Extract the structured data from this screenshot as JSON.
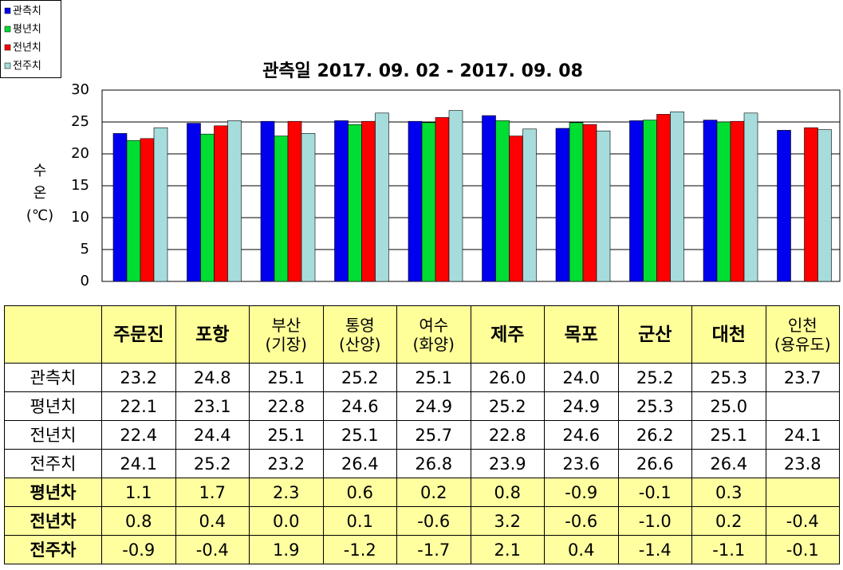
{
  "chart_data": {
    "type": "bar",
    "title": "관측일 2017. 09. 02 - 2017. 09. 08",
    "ylabel": [
      "수",
      "온",
      "(℃)"
    ],
    "series": [
      {
        "name": "관측치",
        "color": "#0000ee",
        "values": [
          23.2,
          24.8,
          25.1,
          25.2,
          25.1,
          26.0,
          24.0,
          25.2,
          25.3,
          23.7
        ]
      },
      {
        "name": "평년치",
        "color": "#00dd33",
        "values": [
          22.1,
          23.1,
          22.8,
          24.6,
          24.9,
          25.2,
          24.9,
          25.3,
          25.0,
          null
        ]
      },
      {
        "name": "전년치",
        "color": "#ff0000",
        "values": [
          22.4,
          24.4,
          25.1,
          25.1,
          25.7,
          22.8,
          24.6,
          26.2,
          25.1,
          24.1
        ]
      },
      {
        "name": "전주치",
        "color": "#a6dcdc",
        "values": [
          24.1,
          25.2,
          23.2,
          26.4,
          26.8,
          23.9,
          23.6,
          26.6,
          26.4,
          23.8
        ]
      }
    ],
    "ylim": [
      0,
      30
    ],
    "yticks": [
      0,
      5,
      10,
      15,
      20,
      25,
      30
    ],
    "grid": true,
    "legend": "top-left"
  },
  "table": {
    "columns": [
      [
        "주문진"
      ],
      [
        "포항"
      ],
      [
        "부산",
        "(기장)"
      ],
      [
        "통영",
        "(산양)"
      ],
      [
        "여수",
        "(화양)"
      ],
      [
        "제주"
      ],
      [
        "목포"
      ],
      [
        "군산"
      ],
      [
        "대천"
      ],
      [
        "인천",
        "(용유도)"
      ]
    ],
    "rows": [
      {
        "label": "관측치",
        "cells": [
          "23.2",
          "24.8",
          "25.1",
          "25.2",
          "25.1",
          "26.0",
          "24.0",
          "25.2",
          "25.3",
          "23.7"
        ]
      },
      {
        "label": "평년치",
        "cells": [
          "22.1",
          "23.1",
          "22.8",
          "24.6",
          "24.9",
          "25.2",
          "24.9",
          "25.3",
          "25.0",
          null
        ]
      },
      {
        "label": "전년치",
        "cells": [
          "22.4",
          "24.4",
          "25.1",
          "25.1",
          "25.7",
          "22.8",
          "24.6",
          "26.2",
          "25.1",
          "24.1"
        ]
      },
      {
        "label": "전주치",
        "cells": [
          "24.1",
          "25.2",
          "23.2",
          "26.4",
          "26.8",
          "23.9",
          "23.6",
          "26.6",
          "26.4",
          "23.8"
        ]
      },
      {
        "label": "평년차",
        "cells": [
          "1.1",
          "1.7",
          "2.3",
          "0.6",
          "0.2",
          "0.8",
          "-0.9",
          "-0.1",
          "0.3",
          null
        ]
      },
      {
        "label": "전년차",
        "cells": [
          "0.8",
          "0.4",
          "0.0",
          "0.1",
          "-0.6",
          "3.2",
          "-0.6",
          "-1.0",
          "0.2",
          "-0.4"
        ]
      },
      {
        "label": "전주차",
        "cells": [
          "-0.9",
          "-0.4",
          "1.9",
          "-1.2",
          "-1.7",
          "2.1",
          "0.4",
          "-1.4",
          "-1.1",
          "-0.1"
        ]
      }
    ]
  }
}
